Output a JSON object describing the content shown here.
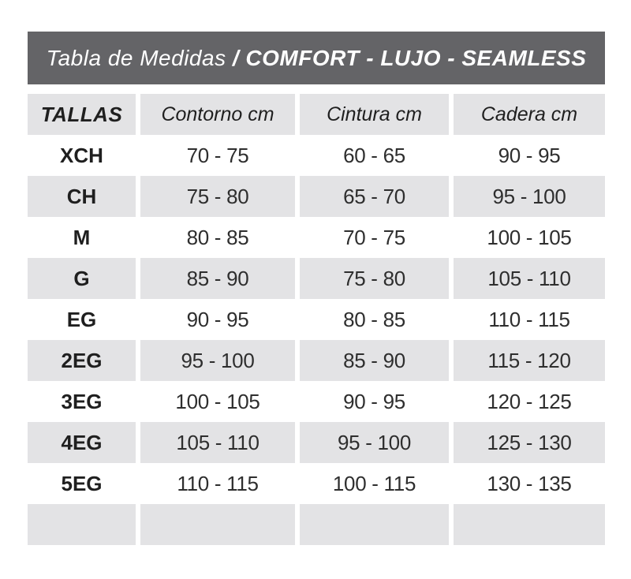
{
  "title": {
    "regular": "Tabla de Medidas ",
    "bold": "/ COMFORT - LUJO - SEAMLESS"
  },
  "table": {
    "columns": [
      "TALLAS",
      "Contorno cm",
      "Cintura cm",
      "Cadera cm"
    ],
    "rows": [
      [
        "XCH",
        "70 - 75",
        "60 - 65",
        "90 - 95"
      ],
      [
        "CH",
        "75 - 80",
        "65 - 70",
        "95 - 100"
      ],
      [
        "M",
        "80 - 85",
        "70 - 75",
        "100 - 105"
      ],
      [
        "G",
        "85 - 90",
        "75 - 80",
        "105 - 110"
      ],
      [
        "EG",
        "90 - 95",
        "80 - 85",
        "110 - 115"
      ],
      [
        "2EG",
        "95 - 100",
        "85 - 90",
        "115 - 120"
      ],
      [
        "3EG",
        "100 - 105",
        "90 - 95",
        "120 - 125"
      ],
      [
        "4EG",
        "105 - 110",
        "95 - 100",
        "125 - 130"
      ],
      [
        "5EG",
        "110 - 115",
        "100 - 115",
        "130 - 135"
      ]
    ],
    "empty_row": [
      "",
      "",
      "",
      ""
    ]
  },
  "colors": {
    "header_bar": "#646467",
    "row_shade": "#e3e3e5",
    "background": "#ffffff",
    "title_text": "#ffffff",
    "text_dark": "#1f1f1f"
  }
}
